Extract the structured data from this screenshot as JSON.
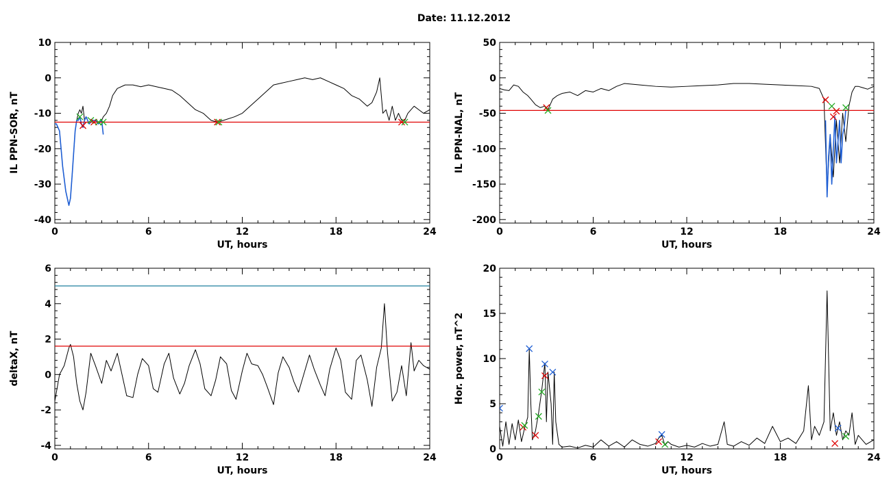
{
  "page": {
    "title": "Date:  11.12.2012"
  },
  "chart_data": [
    {
      "type": "line",
      "id": "sor",
      "xlabel": "UT, hours",
      "ylabel": "IL PPN-SOR, nT",
      "xlim": [
        0,
        24
      ],
      "ylim": [
        -41,
        10
      ],
      "xticks": [
        0,
        6,
        12,
        18,
        24
      ],
      "yticks": [
        10,
        0,
        -10,
        -20,
        -30,
        -40
      ],
      "series": [
        {
          "color": "#000000",
          "x": [
            0,
            0.1,
            0.2,
            0.3,
            0.5,
            0.7,
            0.9,
            1.0,
            1.1,
            1.3,
            1.4,
            1.5,
            1.6,
            1.7,
            1.8,
            1.9,
            2.0,
            2.2,
            2.4,
            2.6,
            2.8,
            3.0,
            3.1,
            3.3,
            3.5,
            3.7,
            4.0,
            4.5,
            5.0,
            5.5,
            6.0,
            6.5,
            7.0,
            7.5,
            8.0,
            8.5,
            9.0,
            9.5,
            10.0,
            10.4,
            10.8,
            11.5,
            12.0,
            12.5,
            13.0,
            13.5,
            14.0,
            14.5,
            15.0,
            15.5,
            16.0,
            16.5,
            17.0,
            17.5,
            18.0,
            18.5,
            19.0,
            19.5,
            20.0,
            20.3,
            20.6,
            20.8,
            20.9,
            21.0,
            21.2,
            21.4,
            21.6,
            21.8,
            22.0,
            22.2,
            22.4,
            22.6,
            22.8,
            23.0,
            23.3,
            23.6,
            24.0
          ],
          "y": [
            -13,
            -13,
            -14,
            -15,
            -25,
            -32,
            -36,
            -34,
            -28,
            -15,
            -12,
            -10,
            -9,
            -10,
            -8,
            -12,
            -11,
            -13,
            -12,
            -12,
            -13,
            -12,
            -11,
            -10,
            -8,
            -5,
            -3,
            -2,
            -2,
            -2.5,
            -2,
            -2.5,
            -3,
            -3.5,
            -5,
            -7,
            -9,
            -10,
            -12,
            -12.5,
            -12,
            -11,
            -10,
            -8,
            -6,
            -4,
            -2,
            -1.5,
            -1,
            -0.5,
            0,
            -0.5,
            0,
            -1,
            -2,
            -3,
            -5,
            -6,
            -8,
            -7,
            -4,
            0,
            -5,
            -10,
            -9,
            -12,
            -8,
            -12,
            -10,
            -12,
            -12,
            -10,
            -9,
            -8,
            -9,
            -10,
            -9
          ]
        },
        {
          "color": "#1f5fd4",
          "x": [
            0,
            0.1,
            0.2,
            0.3,
            0.5,
            0.7,
            0.9,
            1.0,
            1.1,
            1.3,
            1.4,
            1.5,
            1.6,
            1.7,
            1.8,
            1.9,
            2.0,
            2.2,
            2.4,
            2.6,
            2.8,
            3.0,
            3.1
          ],
          "y": [
            -13,
            -13,
            -14,
            -15,
            -25,
            -32,
            -36,
            -34,
            -28,
            -15,
            -12,
            -12,
            -11,
            -13,
            -14,
            -12,
            -11,
            -13,
            -12,
            -12,
            -13,
            -12,
            -16
          ]
        }
      ],
      "threshold_lines": [
        {
          "y": -12.5,
          "color": "#e00000"
        }
      ],
      "markers": [
        {
          "x": 1.6,
          "y": -11,
          "color": "#22aa22"
        },
        {
          "x": 1.8,
          "y": -13.5,
          "color": "#dd0000"
        },
        {
          "x": 2.3,
          "y": -12,
          "color": "#22aa22"
        },
        {
          "x": 2.5,
          "y": -12.5,
          "color": "#dd0000"
        },
        {
          "x": 2.8,
          "y": -12.5,
          "color": "#22aa22"
        },
        {
          "x": 3.1,
          "y": -12.5,
          "color": "#22aa22"
        },
        {
          "x": 10.4,
          "y": -12.5,
          "color": "#dd0000"
        },
        {
          "x": 10.5,
          "y": -12.5,
          "color": "#22aa22"
        },
        {
          "x": 22.2,
          "y": -12.5,
          "color": "#dd0000"
        },
        {
          "x": 22.4,
          "y": -12.5,
          "color": "#22aa22"
        }
      ]
    },
    {
      "type": "line",
      "id": "nal",
      "xlabel": "UT, hours",
      "ylabel": "IL PPN-NAL, nT",
      "xlim": [
        0,
        24
      ],
      "ylim": [
        -205,
        50
      ],
      "xticks": [
        0,
        6,
        12,
        18,
        24
      ],
      "yticks": [
        50,
        0,
        -50,
        -100,
        -150,
        -200
      ],
      "series": [
        {
          "color": "#000000",
          "x": [
            0,
            0.3,
            0.6,
            0.9,
            1.2,
            1.5,
            1.8,
            2.0,
            2.3,
            2.6,
            2.9,
            3.1,
            3.4,
            3.7,
            4.0,
            4.5,
            5.0,
            5.5,
            6.0,
            6.5,
            7.0,
            7.5,
            8.0,
            9.0,
            10.0,
            11.0,
            12.0,
            13.0,
            14.0,
            15.0,
            16.0,
            17.0,
            18.0,
            19.0,
            20.0,
            20.5,
            20.8,
            21.0,
            21.2,
            21.4,
            21.6,
            21.8,
            22.0,
            22.2,
            22.4,
            22.6,
            22.8,
            23.0,
            23.3,
            23.6,
            24.0
          ],
          "y": [
            -15,
            -17,
            -18,
            -10,
            -12,
            -20,
            -25,
            -30,
            -38,
            -42,
            -40,
            -45,
            -30,
            -25,
            -22,
            -20,
            -25,
            -18,
            -20,
            -15,
            -18,
            -12,
            -8,
            -10,
            -12,
            -13,
            -12,
            -11,
            -10,
            -8,
            -8,
            -9,
            -10,
            -11,
            -12,
            -15,
            -30,
            -160,
            -80,
            -140,
            -60,
            -120,
            -50,
            -90,
            -40,
            -20,
            -12,
            -12,
            -14,
            -16,
            -12
          ]
        },
        {
          "color": "#1f5fd4",
          "x": [
            20.9,
            21.0,
            21.1,
            21.2,
            21.3,
            21.4,
            21.5,
            21.6,
            21.7,
            21.8,
            21.9,
            22.0,
            22.1,
            22.2
          ],
          "y": [
            -60,
            -168,
            -110,
            -80,
            -150,
            -100,
            -55,
            -120,
            -90,
            -60,
            -120,
            -80,
            -70,
            -45
          ]
        }
      ],
      "threshold_lines": [
        {
          "y": -46,
          "color": "#e00000"
        }
      ],
      "markers": [
        {
          "x": 3.0,
          "y": -42,
          "color": "#dd0000"
        },
        {
          "x": 3.1,
          "y": -46,
          "color": "#22aa22"
        },
        {
          "x": 20.9,
          "y": -31,
          "color": "#dd0000"
        },
        {
          "x": 21.3,
          "y": -40,
          "color": "#22aa22"
        },
        {
          "x": 21.4,
          "y": -55,
          "color": "#dd0000"
        },
        {
          "x": 21.6,
          "y": -47,
          "color": "#dd0000"
        },
        {
          "x": 22.2,
          "y": -42,
          "color": "#22aa22"
        }
      ]
    },
    {
      "type": "line",
      "id": "deltax",
      "xlabel": "UT, hours",
      "ylabel": "deltaX, nT",
      "xlim": [
        0,
        24
      ],
      "ylim": [
        -4.2,
        6
      ],
      "xticks": [
        0,
        6,
        12,
        18,
        24
      ],
      "yticks": [
        6,
        4,
        2,
        0,
        -2,
        -4
      ],
      "series": [
        {
          "color": "#000000",
          "x": [
            0,
            0.3,
            0.6,
            0.9,
            1.0,
            1.2,
            1.4,
            1.6,
            1.8,
            2.0,
            2.3,
            2.6,
            3.0,
            3.3,
            3.6,
            4.0,
            4.3,
            4.6,
            5.0,
            5.3,
            5.6,
            6.0,
            6.3,
            6.6,
            7.0,
            7.3,
            7.6,
            8.0,
            8.3,
            8.6,
            9.0,
            9.3,
            9.6,
            10.0,
            10.3,
            10.6,
            11.0,
            11.3,
            11.6,
            12.0,
            12.3,
            12.6,
            13.0,
            13.3,
            13.6,
            14.0,
            14.3,
            14.6,
            15.0,
            15.3,
            15.6,
            16.0,
            16.3,
            16.6,
            17.0,
            17.3,
            17.6,
            18.0,
            18.3,
            18.6,
            19.0,
            19.3,
            19.6,
            20.0,
            20.3,
            20.6,
            20.9,
            21.1,
            21.3,
            21.6,
            21.9,
            22.2,
            22.5,
            22.8,
            23.0,
            23.3,
            23.6,
            24.0
          ],
          "y": [
            -1.5,
            0.0,
            0.5,
            1.5,
            1.7,
            1.0,
            -0.5,
            -1.5,
            -2.0,
            -1.0,
            1.2,
            0.5,
            -0.5,
            0.8,
            0.2,
            1.2,
            0.0,
            -1.2,
            -1.3,
            0.0,
            0.9,
            0.5,
            -0.8,
            -1.0,
            0.6,
            1.2,
            -0.2,
            -1.1,
            -0.5,
            0.5,
            1.4,
            0.6,
            -0.8,
            -1.2,
            -0.3,
            1.0,
            0.6,
            -0.9,
            -1.4,
            0.2,
            1.2,
            0.6,
            0.5,
            0.0,
            -0.7,
            -1.7,
            0.1,
            1.0,
            0.4,
            -0.4,
            -1.0,
            0.2,
            1.1,
            0.3,
            -0.6,
            -1.2,
            0.3,
            1.5,
            0.8,
            -1.0,
            -1.4,
            0.8,
            1.1,
            -0.3,
            -1.8,
            0.4,
            1.5,
            4.0,
            1.2,
            -1.5,
            -1.0,
            0.5,
            -1.2,
            1.8,
            0.2,
            0.8,
            0.5,
            0.3
          ]
        }
      ],
      "threshold_lines": [
        {
          "y": 5,
          "color": "#1e7f9e"
        },
        {
          "y": 1.6,
          "color": "#e00000"
        }
      ],
      "markers": []
    },
    {
      "type": "line",
      "id": "power",
      "xlabel": "UT, hours",
      "ylabel": "Hor. power, nT^2",
      "xlim": [
        0,
        24
      ],
      "ylim": [
        0,
        20
      ],
      "xticks": [
        0,
        6,
        12,
        18,
        24
      ],
      "yticks": [
        20,
        15,
        10,
        5,
        0
      ],
      "series": [
        {
          "color": "#000000",
          "x": [
            0,
            0.2,
            0.4,
            0.6,
            0.8,
            1.0,
            1.2,
            1.4,
            1.6,
            1.8,
            1.9,
            2.0,
            2.1,
            2.3,
            2.5,
            2.7,
            2.9,
            3.0,
            3.1,
            3.3,
            3.4,
            3.5,
            3.6,
            3.8,
            4.0,
            4.5,
            5.0,
            5.5,
            6.0,
            6.5,
            7.0,
            7.5,
            8.0,
            8.5,
            9.0,
            9.5,
            10.0,
            10.2,
            10.4,
            10.6,
            10.8,
            11.0,
            11.5,
            12.0,
            12.5,
            13.0,
            13.5,
            14.0,
            14.4,
            14.6,
            15.0,
            15.5,
            16.0,
            16.5,
            17.0,
            17.5,
            18.0,
            18.5,
            19.0,
            19.5,
            19.8,
            20.0,
            20.2,
            20.5,
            20.8,
            21.0,
            21.2,
            21.4,
            21.6,
            21.8,
            22.0,
            22.2,
            22.4,
            22.6,
            22.8,
            23.0,
            23.5,
            24.0
          ],
          "y": [
            2.5,
            0.3,
            3.0,
            0.5,
            2.8,
            1.0,
            3.2,
            0.8,
            2.3,
            3.5,
            11.0,
            5.0,
            1.0,
            2.0,
            4.0,
            6.5,
            9.5,
            3.0,
            8.5,
            5.0,
            0.5,
            8.5,
            3.0,
            0.5,
            0.2,
            0.3,
            0.1,
            0.4,
            0.2,
            1.0,
            0.3,
            0.8,
            0.2,
            1.0,
            0.5,
            0.3,
            0.6,
            1.2,
            1.5,
            0.4,
            0.8,
            0.5,
            0.2,
            0.4,
            0.2,
            0.6,
            0.3,
            0.5,
            3.0,
            0.5,
            0.3,
            0.8,
            0.4,
            1.2,
            0.6,
            2.5,
            0.8,
            1.2,
            0.6,
            2.0,
            7.0,
            1.0,
            2.5,
            1.5,
            3.0,
            17.5,
            2.0,
            4.0,
            1.5,
            3.0,
            1.0,
            2.0,
            1.5,
            4.0,
            0.5,
            1.5,
            0.5,
            1.0
          ]
        }
      ],
      "threshold_lines": [],
      "markers": [
        {
          "x": 0.0,
          "y": 4.5,
          "color": "#1f5fd4"
        },
        {
          "x": 1.5,
          "y": 2.4,
          "color": "#dd0000"
        },
        {
          "x": 1.6,
          "y": 2.6,
          "color": "#22aa22"
        },
        {
          "x": 1.9,
          "y": 11.1,
          "color": "#1f5fd4"
        },
        {
          "x": 2.3,
          "y": 1.5,
          "color": "#dd0000"
        },
        {
          "x": 2.5,
          "y": 3.6,
          "color": "#22aa22"
        },
        {
          "x": 2.7,
          "y": 6.3,
          "color": "#22aa22"
        },
        {
          "x": 2.9,
          "y": 9.4,
          "color": "#1f5fd4"
        },
        {
          "x": 2.9,
          "y": 8.1,
          "color": "#dd0000"
        },
        {
          "x": 3.4,
          "y": 8.5,
          "color": "#1f5fd4"
        },
        {
          "x": 10.2,
          "y": 0.8,
          "color": "#dd0000"
        },
        {
          "x": 10.4,
          "y": 1.6,
          "color": "#1f5fd4"
        },
        {
          "x": 10.6,
          "y": 0.5,
          "color": "#22aa22"
        },
        {
          "x": 21.5,
          "y": 0.6,
          "color": "#dd0000"
        },
        {
          "x": 21.7,
          "y": 2.3,
          "color": "#1f5fd4"
        },
        {
          "x": 22.2,
          "y": 1.4,
          "color": "#22aa22"
        }
      ]
    }
  ]
}
